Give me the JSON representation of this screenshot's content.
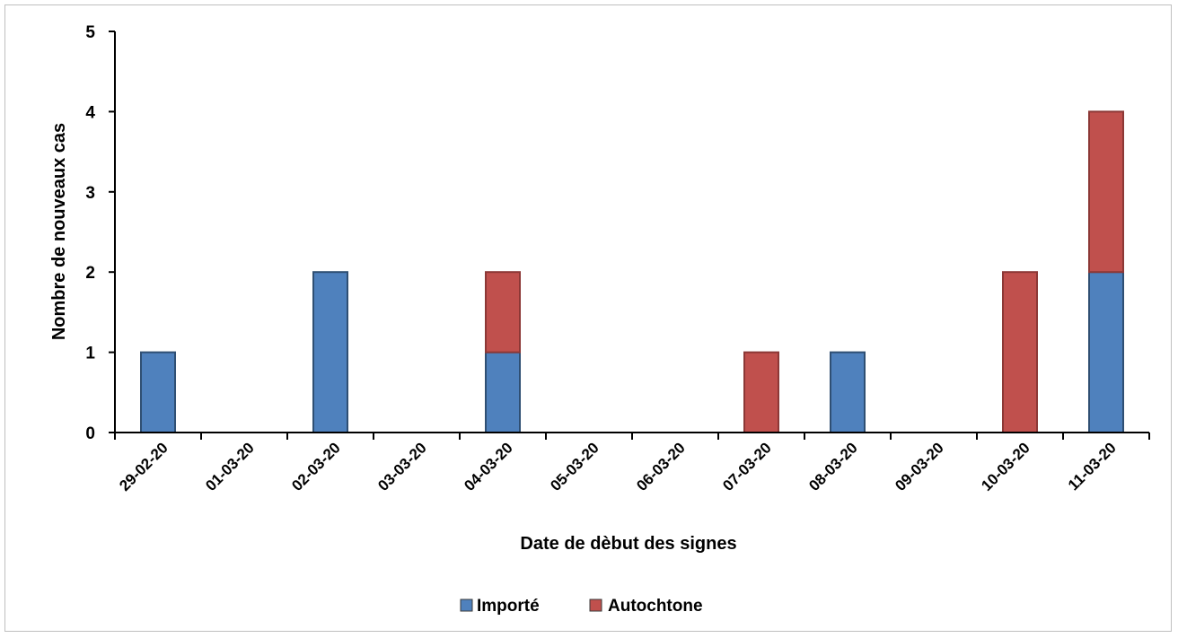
{
  "chart_data": {
    "type": "bar",
    "stacked": true,
    "title": "",
    "xlabel": "Date de dèbut des signes",
    "ylabel": "Nombre de nouveaux cas",
    "ylim": [
      0,
      5
    ],
    "yticks": [
      "0",
      "1",
      "2",
      "3",
      "4",
      "5"
    ],
    "grid": false,
    "legend_position": "bottom",
    "categories": [
      "29-02-20",
      "01-03-20",
      "02-03-20",
      "03-03-20",
      "04-03-20",
      "05-03-20",
      "06-03-20",
      "07-03-20",
      "08-03-20",
      "09-03-20",
      "10-03-20",
      "11-03-20"
    ],
    "series": [
      {
        "name": "Importé",
        "color": "#4f81bd",
        "values": [
          1,
          0,
          2,
          0,
          1,
          0,
          0,
          0,
          1,
          0,
          0,
          2
        ]
      },
      {
        "name": "Autochtone",
        "color": "#c0504d",
        "values": [
          0,
          0,
          0,
          0,
          1,
          0,
          0,
          1,
          0,
          0,
          2,
          2
        ]
      }
    ]
  }
}
